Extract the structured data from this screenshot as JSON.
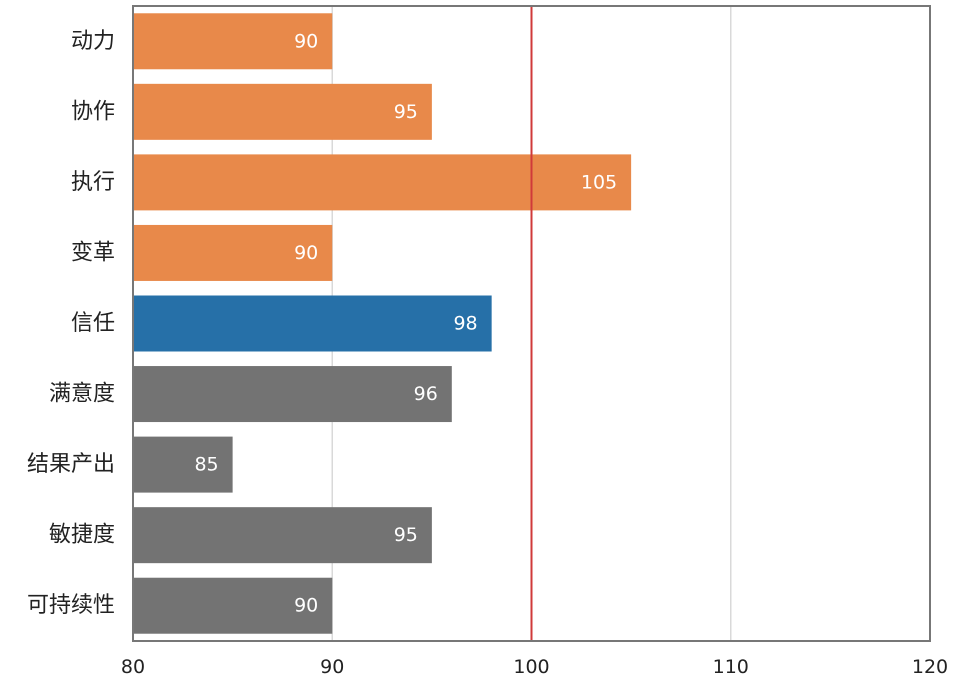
{
  "chart_data": {
    "type": "bar",
    "orientation": "horizontal",
    "categories": [
      "动力",
      "协作",
      "执行",
      "变革",
      "信任",
      "满意度",
      "结果产出",
      "敏捷度",
      "可持续性"
    ],
    "values": [
      90,
      95,
      105,
      90,
      98,
      96,
      85,
      95,
      90
    ],
    "data_labels": [
      "90",
      "95",
      "105",
      "90",
      "98",
      "96",
      "85",
      "95",
      "90"
    ],
    "colors": [
      "#E8894A",
      "#E8894A",
      "#E8894A",
      "#E8894A",
      "#2670A8",
      "#737373",
      "#737373",
      "#737373",
      "#737373"
    ],
    "xlim": [
      80,
      120
    ],
    "xticks": [
      80,
      90,
      100,
      110,
      120
    ],
    "xtick_labels": [
      "80",
      "90",
      "100",
      "110",
      "120"
    ],
    "reference_line": {
      "value": 100,
      "color": "#D03A3A"
    },
    "grid": true,
    "gridline_color": "#d9d9d9",
    "frame_color": "#777777",
    "title": "",
    "xlabel": "",
    "ylabel": ""
  }
}
